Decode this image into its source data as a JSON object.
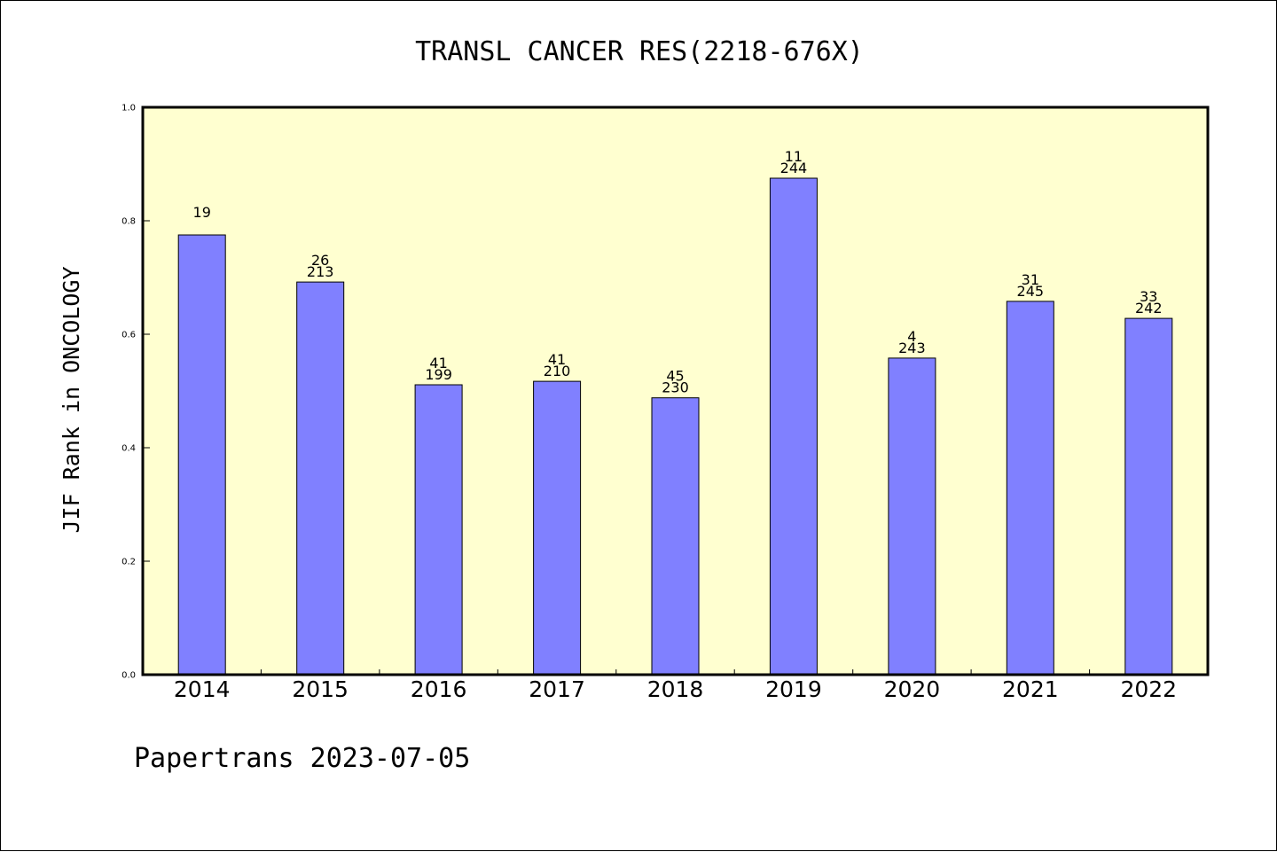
{
  "chart_data": {
    "type": "bar",
    "title": "TRANSL CANCER RES(2218-676X)",
    "ylabel": "JIF Rank in ONCOLOGY",
    "xlabel": "",
    "categories": [
      "2014",
      "2015",
      "2016",
      "2017",
      "2018",
      "2019",
      "2020",
      "2021",
      "2022"
    ],
    "values": [
      0.775,
      0.692,
      0.511,
      0.517,
      0.488,
      0.875,
      0.558,
      0.658,
      0.628
    ],
    "labels_top": [
      "19",
      "26",
      "41",
      "41",
      "45",
      "11",
      "4",
      "31",
      "33"
    ],
    "labels_bottom": [
      "",
      "213",
      "199",
      "210",
      "230",
      "244",
      "243",
      "245",
      "242"
    ],
    "ylim": [
      0,
      1.0
    ],
    "yticks": [
      "0.0",
      "0.2",
      "0.4",
      "0.6",
      "0.8",
      "1.0"
    ],
    "grid": false,
    "colors": {
      "plot_background": "#ffffd0",
      "bar_fill": "#8080ff",
      "bar_stroke": "#000000"
    }
  },
  "footer": {
    "text": "Papertrans 2023-07-05"
  }
}
